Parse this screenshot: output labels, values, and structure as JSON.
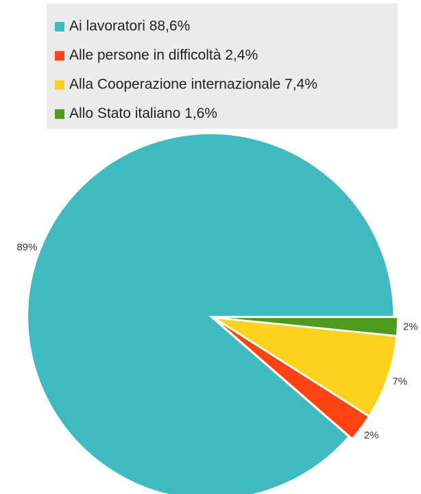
{
  "chart_data": {
    "type": "pie",
    "categories": [
      "Ai lavoratori 88,6%",
      "Alle persone in difficoltà 2,4%",
      "Alla Cooperazione internazionale 7,4%",
      "Allo Stato italiano 1,6%"
    ],
    "values": [
      88.6,
      2.4,
      7.4,
      1.6
    ],
    "value_labels": [
      "89%",
      "2%",
      "7%",
      "2%"
    ],
    "colors": [
      "#3fbabf",
      "#ff4313",
      "#fdd21f",
      "#4d9a1e"
    ],
    "legend": "top"
  }
}
